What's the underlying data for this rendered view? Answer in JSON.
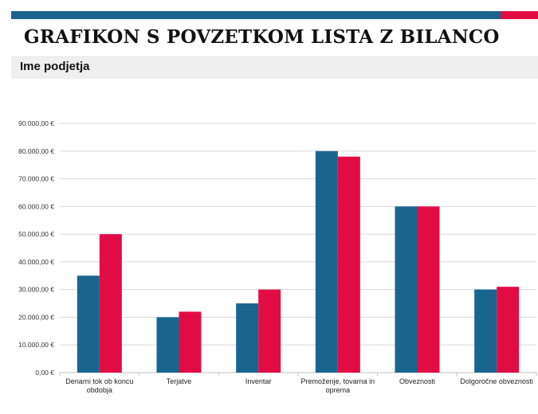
{
  "header": {
    "title": "GRAFIKON S POVZETKOM LISTA Z BILANCO",
    "company": "Ime podjetja"
  },
  "colors": {
    "series1": "#1a6590",
    "series2": "#e20c44",
    "grid": "#d9d9d9"
  },
  "chart_data": {
    "type": "bar",
    "categories": [
      [
        "Denarni tok ob koncu",
        "obdobja"
      ],
      [
        "Terjatve"
      ],
      [
        "Inventar"
      ],
      [
        "Premoženje, tovarna in",
        "oprema"
      ],
      [
        "Obveznosti"
      ],
      [
        "Dolgoročne obveznosti"
      ]
    ],
    "series": [
      {
        "values": [
          35000,
          20000,
          25000,
          80000,
          60000,
          30000
        ]
      },
      {
        "values": [
          50000,
          22000,
          30000,
          78000,
          60000,
          31000
        ]
      }
    ],
    "ylim": [
      0,
      90000
    ],
    "yticks": [
      "0,00 €",
      "10.000,00 €",
      "20.000,00 €",
      "30.000,00 €",
      "40.000,00 €",
      "50.000,00 €",
      "60.000,00 €",
      "70.000,00 €",
      "80.000,00 €",
      "90.000,00 €"
    ],
    "grid": true,
    "legend": "none"
  }
}
